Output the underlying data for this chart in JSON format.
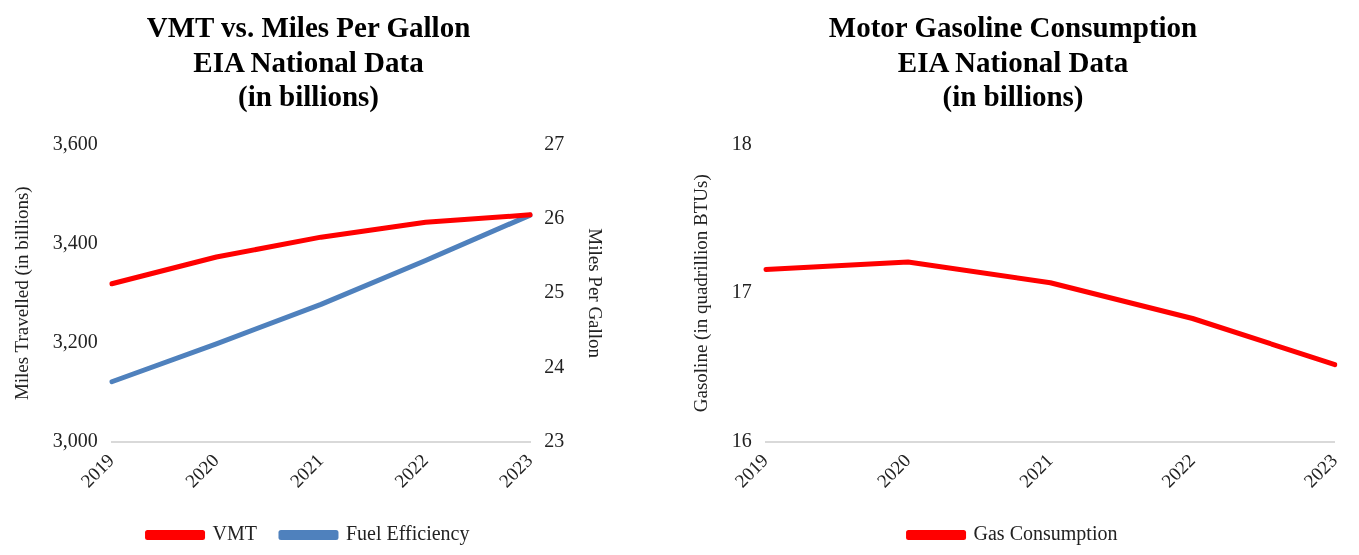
{
  "chart_data": [
    {
      "type": "line",
      "title": [
        "VMT vs. Miles Per Gallon",
        "EIA National Data",
        "(in billions)"
      ],
      "ylabel": "Miles Travelled (in billions)",
      "y2label": "Miles Per Gallon",
      "categories": [
        "2019",
        "2020",
        "2021",
        "2022",
        "2023"
      ],
      "series": [
        {
          "name": "VMT",
          "color": "#ff0000",
          "values": [
            3319,
            3373,
            3413,
            3443,
            3458
          ]
        },
        {
          "name": "Fuel Efficiency",
          "color": "#4f81bd",
          "values": [
            23.81,
            24.32,
            24.85,
            25.44,
            26.05
          ],
          "axis": "y2"
        }
      ],
      "ylim": [
        3000,
        3600
      ],
      "yticks": [
        {
          "value": 3000,
          "label": "3,000"
        },
        {
          "value": 3200,
          "label": "3,200"
        },
        {
          "value": 3400,
          "label": "3,400"
        },
        {
          "value": 3600,
          "label": "3,600"
        }
      ],
      "y2lim": [
        23,
        27
      ],
      "y2ticks": [
        23,
        24,
        25,
        26,
        27
      ],
      "legend": "bottom",
      "grid": false,
      "marker": "none",
      "line_style": "solid"
    },
    {
      "type": "line",
      "title": [
        "Motor Gasoline Consumption",
        "EIA National Data",
        "(in billions)"
      ],
      "ylabel": "Gasoline (in quadrillion BTUs)",
      "categories": [
        "2019",
        "2020",
        "2021",
        "2022",
        "2023"
      ],
      "series": [
        {
          "name": "Gas Consumption",
          "color": "#ff0000",
          "values": [
            17.16,
            17.21,
            17.07,
            16.83,
            16.52
          ]
        }
      ],
      "ylim": [
        16,
        18
      ],
      "yticks": [
        16,
        17,
        18
      ],
      "legend": "bottom",
      "grid": false,
      "marker": "none",
      "line_style": "solid"
    }
  ]
}
